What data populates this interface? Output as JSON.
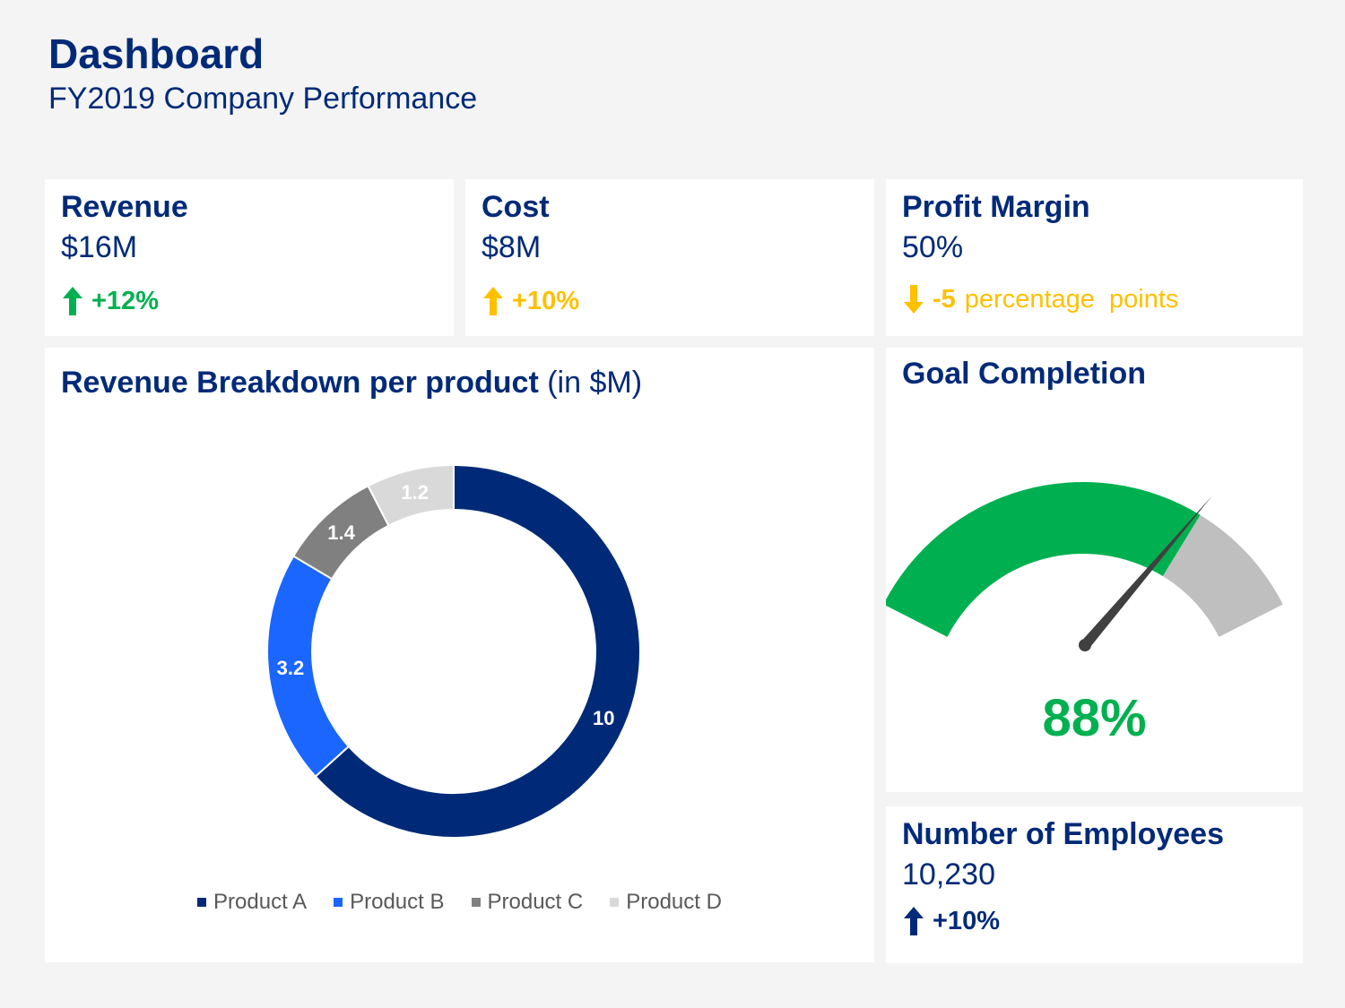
{
  "header": {
    "title": "Dashboard",
    "subtitle": "FY2019 Company Performance"
  },
  "kpis": {
    "revenue": {
      "title": "Revenue",
      "value": "$16M",
      "delta": "+12%",
      "direction": "up",
      "color": "#00b050"
    },
    "cost": {
      "title": "Cost",
      "value": "$8M",
      "delta": "+10%",
      "direction": "up",
      "color": "#ffc000"
    },
    "profit_margin": {
      "title": "Profit Margin",
      "value": "50%",
      "delta_number": "-5",
      "delta_unit": "percentage  points",
      "direction": "down",
      "color": "#ffc000"
    },
    "employees": {
      "title": "Number of Employees",
      "value": "10,230",
      "delta": "+10%",
      "direction": "up",
      "color": "#002a78"
    }
  },
  "breakdown": {
    "title_bold": "Revenue Breakdown per product",
    "title_unit": "(in $M)"
  },
  "goal": {
    "title": "Goal Completion",
    "percent_label": "88%",
    "fraction": 0.88,
    "fill_color": "#00b050",
    "remainder_color": "#bfbfbf"
  },
  "chart_data": {
    "type": "pie",
    "donut": true,
    "categories": [
      "Product A",
      "Product B",
      "Product C",
      "Product D"
    ],
    "values": [
      10,
      3.2,
      1.4,
      1.2
    ],
    "labels": [
      "10",
      "3.2",
      "1.4",
      "1.2"
    ],
    "colors": [
      "#002a78",
      "#1a66ff",
      "#808080",
      "#d9d9d9"
    ],
    "legend": "bottom"
  }
}
